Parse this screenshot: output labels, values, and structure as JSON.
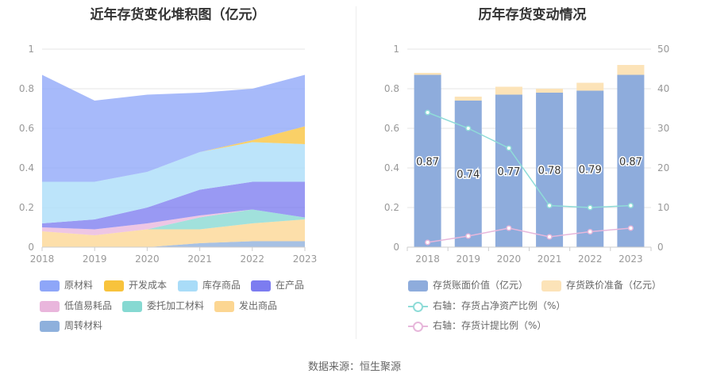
{
  "source": "数据来源：恒生聚源",
  "chart_data": [
    {
      "type": "area",
      "stacked": true,
      "title": "近年存货变化堆积图（亿元）",
      "categories": [
        "2018",
        "2019",
        "2020",
        "2021",
        "2022",
        "2023"
      ],
      "ylim": [
        0,
        1
      ],
      "yticks": [
        "0",
        "0.2",
        "0.4",
        "0.6",
        "0.8",
        "1"
      ],
      "series": [
        {
          "name": "周转材料",
          "color": "#8eb0dc",
          "values": [
            0.0,
            0.0,
            0.0,
            0.02,
            0.03,
            0.03
          ]
        },
        {
          "name": "发出商品",
          "color": "#fcd692",
          "values": [
            0.08,
            0.06,
            0.09,
            0.07,
            0.09,
            0.11
          ]
        },
        {
          "name": "委托加工材料",
          "color": "#86d9d2",
          "values": [
            0.0,
            0.0,
            0.0,
            0.06,
            0.07,
            0.01
          ]
        },
        {
          "name": "低值易耗品",
          "color": "#e9b6dc",
          "values": [
            0.02,
            0.03,
            0.03,
            0.01,
            0.0,
            0.0
          ]
        },
        {
          "name": "在产品",
          "color": "#7c7cf0",
          "values": [
            0.02,
            0.05,
            0.08,
            0.13,
            0.14,
            0.18
          ]
        },
        {
          "name": "库存商品",
          "color": "#a9dcf8",
          "values": [
            0.21,
            0.19,
            0.18,
            0.19,
            0.2,
            0.19
          ]
        },
        {
          "name": "开发成本",
          "color": "#f8c33c",
          "values": [
            0.0,
            0.0,
            0.0,
            0.0,
            0.01,
            0.09
          ]
        },
        {
          "name": "原材料",
          "color": "#8ea6f8",
          "values": [
            0.54,
            0.41,
            0.39,
            0.3,
            0.26,
            0.26
          ]
        }
      ],
      "legend": [
        "原材料",
        "开发成本",
        "库存商品",
        "在产品",
        "低值易耗品",
        "委托加工材料",
        "发出商品",
        "周转材料"
      ]
    },
    {
      "type": "bar+line",
      "title": "历年存货变动情况",
      "categories": [
        "2018",
        "2019",
        "2020",
        "2021",
        "2022",
        "2023"
      ],
      "ylim": [
        0,
        1
      ],
      "yticks": [
        "0",
        "0.2",
        "0.4",
        "0.6",
        "0.8",
        "1"
      ],
      "y2lim": [
        0,
        50
      ],
      "y2ticks": [
        "0",
        "10",
        "20",
        "30",
        "40",
        "50"
      ],
      "series": [
        {
          "name": "存货账面价值（亿元）",
          "axis": "left",
          "kind": "bar",
          "color": "#8eacdc",
          "values": [
            0.87,
            0.74,
            0.77,
            0.78,
            0.79,
            0.87
          ],
          "labels": [
            "0.87",
            "0.74",
            "0.77",
            "0.78",
            "0.79",
            "0.87"
          ]
        },
        {
          "name": "存货跌价准备（亿元）",
          "axis": "left",
          "kind": "bar",
          "color": "#fce3b8",
          "values": [
            0.01,
            0.02,
            0.04,
            0.02,
            0.04,
            0.05
          ]
        },
        {
          "name": "右轴：存货占净资产比例（%）",
          "axis": "right",
          "kind": "line",
          "color": "#8fdcd8",
          "values": [
            34.0,
            30.0,
            25.0,
            10.5,
            10.0,
            10.5
          ]
        },
        {
          "name": "右轴：存货计提比例（%）",
          "axis": "right",
          "kind": "line",
          "color": "#e7b7db",
          "values": [
            1.2,
            2.8,
            4.8,
            2.6,
            3.9,
            4.8
          ]
        }
      ]
    }
  ]
}
